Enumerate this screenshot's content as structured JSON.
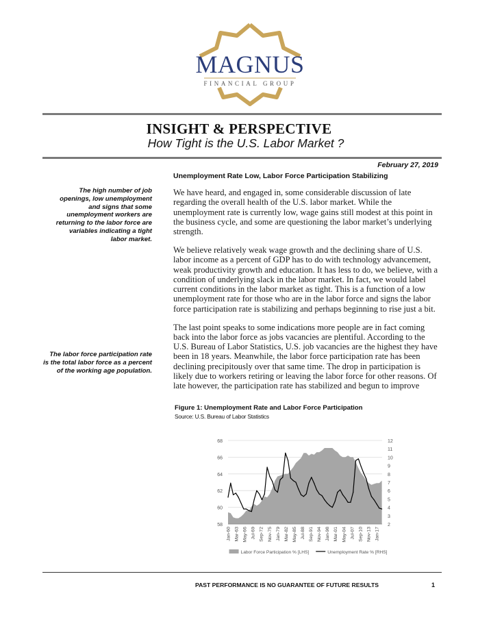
{
  "logo": {
    "name": "MAGNUS",
    "tagline": "FINANCIAL GROUP",
    "gold": "#c9a55a",
    "blue": "#2b3d7a"
  },
  "header": {
    "title": "INSIGHT & PERSPECTIVE",
    "subtitle": "How Tight is the U.S. Labor Market ?"
  },
  "date": "February 27, 2019",
  "subheading": "Unemployment Rate Low, Labor Force Participation Stabilizing",
  "sidebar_notes": [
    "The high number of job openings, low unemployment and signs that some unemployment workers are returning to the labor force are variables indicating a tight labor market.",
    "The labor force participation rate is the total labor force as a percent of the working age population."
  ],
  "paragraphs": [
    "We have heard, and engaged in, some considerable discussion of late regarding the overall health of the U.S. labor market.  While the unemployment rate is currently low, wage gains still modest at this point in the business cycle, and some are questioning the labor market’s underlying strength.",
    "We believe relatively weak wage growth and the declining share of U.S. labor income as a percent of GDP has to do with technology advancement, weak productivity growth and education.  It has less to do, we believe, with a condition of underlying slack in the labor market.  In fact, we would label current conditions in the labor market as tight.  This is a function of a low unemployment rate for those who are in the labor force and signs the labor force participation rate is stabilizing and perhaps beginning to rise just a bit.",
    "The last point speaks to some indications more people are in fact coming back into the labor force as jobs vacancies are plentiful.  According to the U.S. Bureau of Labor Statistics, U.S. job vacancies are the highest they have been in 18 years.  Meanwhile, the labor force participation rate has been declining precipitously over that same time.  The drop in participation is likely due to workers retiring or leaving the labor force for other reasons.  Of late however, the participation rate has stabilized and begun to improve"
  ],
  "figure": {
    "title": "Figure 1:  Unemployment Rate and Labor Force Participation",
    "source": "Source: U.S. Bureau of Labor Statistics"
  },
  "chart_data": {
    "type": "area+line",
    "x": [
      1960,
      1961,
      1962,
      1963,
      1964,
      1965,
      1966,
      1967,
      1968,
      1969,
      1970,
      1971,
      1972,
      1973,
      1974,
      1975,
      1976,
      1977,
      1978,
      1979,
      1980,
      1981,
      1982,
      1983,
      1984,
      1985,
      1986,
      1987,
      1988,
      1989,
      1990,
      1991,
      1992,
      1993,
      1994,
      1995,
      1996,
      1997,
      1998,
      1999,
      2000,
      2001,
      2002,
      2003,
      2004,
      2005,
      2006,
      2007,
      2008,
      2009,
      2010,
      2011,
      2012,
      2013,
      2014,
      2015,
      2016,
      2017,
      2018,
      2019
    ],
    "series": [
      {
        "name": "Labor Force Participation % [LHS]",
        "type": "area",
        "axis": "left",
        "color": "#a6a6a6",
        "values": [
          59.4,
          59.3,
          58.8,
          58.7,
          58.7,
          58.9,
          59.2,
          59.6,
          59.6,
          60.1,
          60.4,
          60.2,
          60.4,
          60.8,
          61.3,
          61.2,
          61.6,
          62.3,
          63.2,
          63.7,
          63.8,
          63.9,
          64.0,
          64.0,
          64.4,
          64.8,
          65.3,
          65.6,
          65.9,
          66.5,
          66.5,
          66.2,
          66.4,
          66.3,
          66.6,
          66.6,
          66.8,
          67.1,
          67.1,
          67.1,
          67.1,
          66.8,
          66.6,
          66.2,
          66.0,
          66.0,
          66.2,
          66.0,
          66.0,
          65.4,
          64.7,
          64.1,
          63.7,
          63.2,
          62.9,
          62.7,
          62.8,
          62.9,
          62.9,
          63.2
        ]
      },
      {
        "name": "Unemployment Rate % [RHS]",
        "type": "line",
        "axis": "right",
        "color": "#000000",
        "values": [
          5.2,
          6.9,
          5.5,
          5.7,
          5.2,
          4.5,
          3.8,
          3.8,
          3.6,
          3.5,
          4.9,
          6.0,
          5.6,
          4.9,
          5.6,
          8.8,
          7.7,
          7.1,
          6.1,
          5.8,
          7.3,
          7.6,
          10.5,
          9.6,
          7.5,
          7.2,
          7.0,
          6.2,
          5.5,
          5.3,
          5.6,
          6.9,
          7.6,
          6.9,
          6.1,
          5.6,
          5.4,
          4.9,
          4.5,
          4.2,
          4.0,
          4.7,
          5.8,
          6.1,
          5.5,
          5.1,
          4.6,
          4.6,
          5.8,
          9.6,
          9.8,
          8.9,
          8.1,
          7.4,
          6.2,
          5.3,
          4.9,
          4.4,
          3.9,
          3.8
        ]
      }
    ],
    "y_left": {
      "range": [
        58,
        68
      ],
      "ticks": [
        58,
        60,
        62,
        64,
        66,
        68
      ]
    },
    "y_right": {
      "range": [
        2,
        12
      ],
      "ticks": [
        2,
        3,
        4,
        5,
        6,
        7,
        8,
        9,
        10,
        11,
        12
      ]
    },
    "x_tick_labels": [
      "Jan-60",
      "Mar-63",
      "May-66",
      "Jul-69",
      "Sep-72",
      "Nov-75",
      "Jan-79",
      "Mar-82",
      "May-85",
      "Jul-88",
      "Sep-91",
      "Nov-94",
      "Jan-98",
      "Mar-01",
      "May-04",
      "Jul-07",
      "Sep-10",
      "Nov-13",
      "Jan-17"
    ],
    "grid": "horizontal",
    "legend": "bottom"
  },
  "footer": {
    "disclaimer": "PAST PERFORMANCE IS NO GUARANTEE OF FUTURE RESULTS",
    "page": "1"
  }
}
